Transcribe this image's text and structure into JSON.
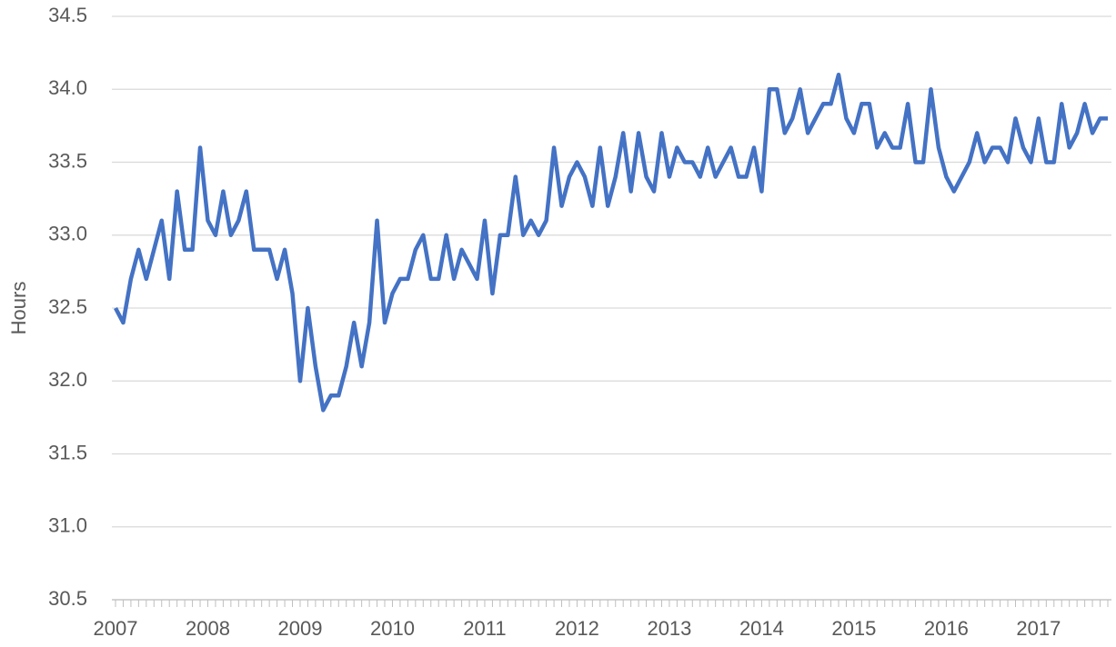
{
  "chart_data": {
    "type": "line",
    "y_label": "Hours",
    "color": "#4472c4",
    "grid": true,
    "categories": [
      "2007",
      null,
      null,
      null,
      null,
      null,
      null,
      null,
      null,
      null,
      null,
      null,
      "2008",
      null,
      null,
      null,
      null,
      null,
      null,
      null,
      null,
      null,
      null,
      null,
      "2009",
      null,
      null,
      null,
      null,
      null,
      null,
      null,
      null,
      null,
      null,
      null,
      "2010",
      null,
      null,
      null,
      null,
      null,
      null,
      null,
      null,
      null,
      null,
      null,
      "2011",
      null,
      null,
      null,
      null,
      null,
      null,
      null,
      null,
      null,
      null,
      null,
      "2012",
      null,
      null,
      null,
      null,
      null,
      null,
      null,
      null,
      null,
      null,
      null,
      "2013",
      null,
      null,
      null,
      null,
      null,
      null,
      null,
      null,
      null,
      null,
      null,
      "2014",
      null,
      null,
      null,
      null,
      null,
      null,
      null,
      null,
      null,
      null,
      null,
      "2015",
      null,
      null,
      null,
      null,
      null,
      null,
      null,
      null,
      null,
      null,
      null,
      "2016",
      null,
      null,
      null,
      null,
      null,
      null,
      null,
      null,
      null,
      null,
      null,
      "2017",
      null,
      null,
      null,
      null,
      null,
      null,
      null,
      null,
      null
    ],
    "values": [
      32.5,
      32.4,
      32.7,
      32.9,
      32.7,
      32.9,
      33.1,
      32.7,
      33.3,
      32.9,
      32.9,
      33.6,
      33.1,
      33.0,
      33.3,
      33.0,
      33.1,
      33.3,
      32.9,
      32.9,
      32.9,
      32.7,
      32.9,
      32.6,
      32.0,
      32.5,
      32.1,
      31.8,
      31.9,
      31.9,
      32.1,
      32.4,
      32.1,
      32.4,
      33.1,
      32.4,
      32.6,
      32.7,
      32.7,
      32.9,
      33.0,
      32.7,
      32.7,
      33.0,
      32.7,
      32.9,
      32.8,
      32.7,
      33.1,
      32.6,
      33.0,
      33.0,
      33.4,
      33.0,
      33.1,
      33.0,
      33.1,
      33.6,
      33.2,
      33.4,
      33.5,
      33.4,
      33.2,
      33.6,
      33.2,
      33.4,
      33.7,
      33.3,
      33.7,
      33.4,
      33.3,
      33.7,
      33.4,
      33.6,
      33.5,
      33.5,
      33.4,
      33.6,
      33.4,
      33.5,
      33.6,
      33.4,
      33.4,
      33.6,
      33.3,
      34.0,
      34.0,
      33.7,
      33.8,
      34.0,
      33.7,
      33.8,
      33.9,
      33.9,
      34.1,
      33.8,
      33.7,
      33.9,
      33.9,
      33.6,
      33.7,
      33.6,
      33.6,
      33.9,
      33.5,
      33.5,
      34.0,
      33.6,
      33.4,
      33.3,
      33.4,
      33.5,
      33.7,
      33.5,
      33.6,
      33.6,
      33.5,
      33.8,
      33.6,
      33.5,
      33.8,
      33.5,
      33.5,
      33.9,
      33.6,
      33.7,
      33.9,
      33.7,
      33.8,
      33.8
    ],
    "ylim": [
      30.5,
      34.5
    ],
    "yticks": [
      30.5,
      {
        "value": 31,
        "label": "31.0"
      },
      31.5,
      {
        "value": 32,
        "label": "32.0"
      },
      32.5,
      {
        "value": 33,
        "label": "33.0"
      },
      33.5,
      {
        "value": 34,
        "label": "34.0"
      },
      34.5
    ]
  }
}
